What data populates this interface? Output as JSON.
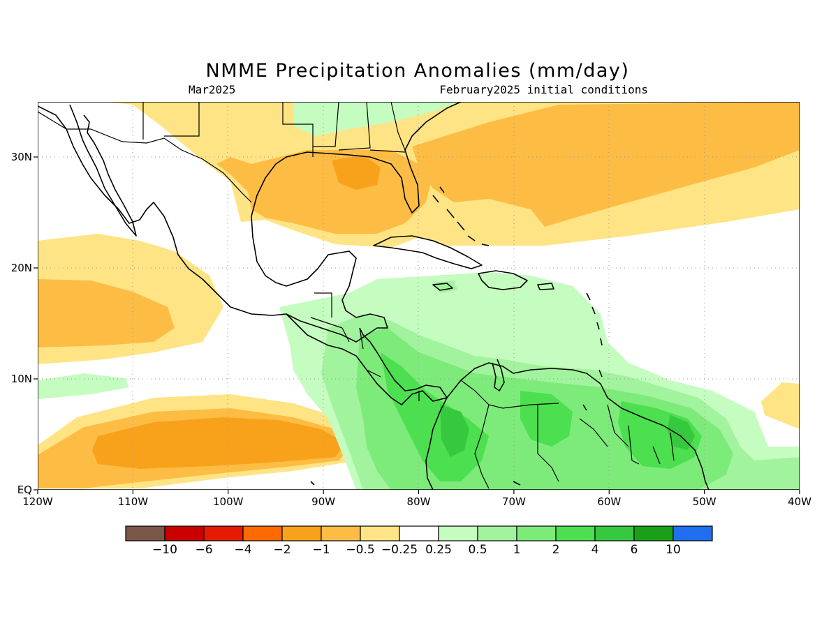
{
  "title": "NMME Precipitation Anomalies (mm/day)",
  "subtitle_left": "Mar2025",
  "subtitle_right": "February2025 initial conditions",
  "colors": {
    "dry_10": "#7a5548",
    "dry_6": "#c80000",
    "dry_4": "#e41b00",
    "dry_2": "#ff6a00",
    "dry_1": "#f8a21c",
    "dry_05": "#fdbd45",
    "dry_025": "#fee484",
    "neutral": "#ffffff",
    "wet_025": "#c5fcc0",
    "wet_05": "#a2f39d",
    "wet_1": "#7deb7a",
    "wet_2": "#4cdf4f",
    "wet_4": "#36c93f",
    "wet_6": "#1aa018",
    "wet_10": "#1f6ff0"
  },
  "map": {
    "lon_labels": [
      "120W",
      "110W",
      "100W",
      "90W",
      "80W",
      "70W",
      "60W",
      "50W",
      "40W"
    ],
    "lat_labels": [
      "EQ",
      "10N",
      "20N",
      "30N"
    ]
  },
  "legend": {
    "labels": [
      "-10",
      "-6",
      "-4",
      "-2",
      "-1",
      "-0.5",
      "-0.25",
      "0.25",
      "0.5",
      "1",
      "2",
      "4",
      "6",
      "10"
    ],
    "colors": [
      "#7a5548",
      "#c80000",
      "#e41b00",
      "#ff6a00",
      "#f8a21c",
      "#fdbd45",
      "#fee484",
      "#ffffff",
      "#c5fcc0",
      "#a2f39d",
      "#7deb7a",
      "#4cdf4f",
      "#36c93f",
      "#1aa018",
      "#1f6ff0"
    ]
  }
}
